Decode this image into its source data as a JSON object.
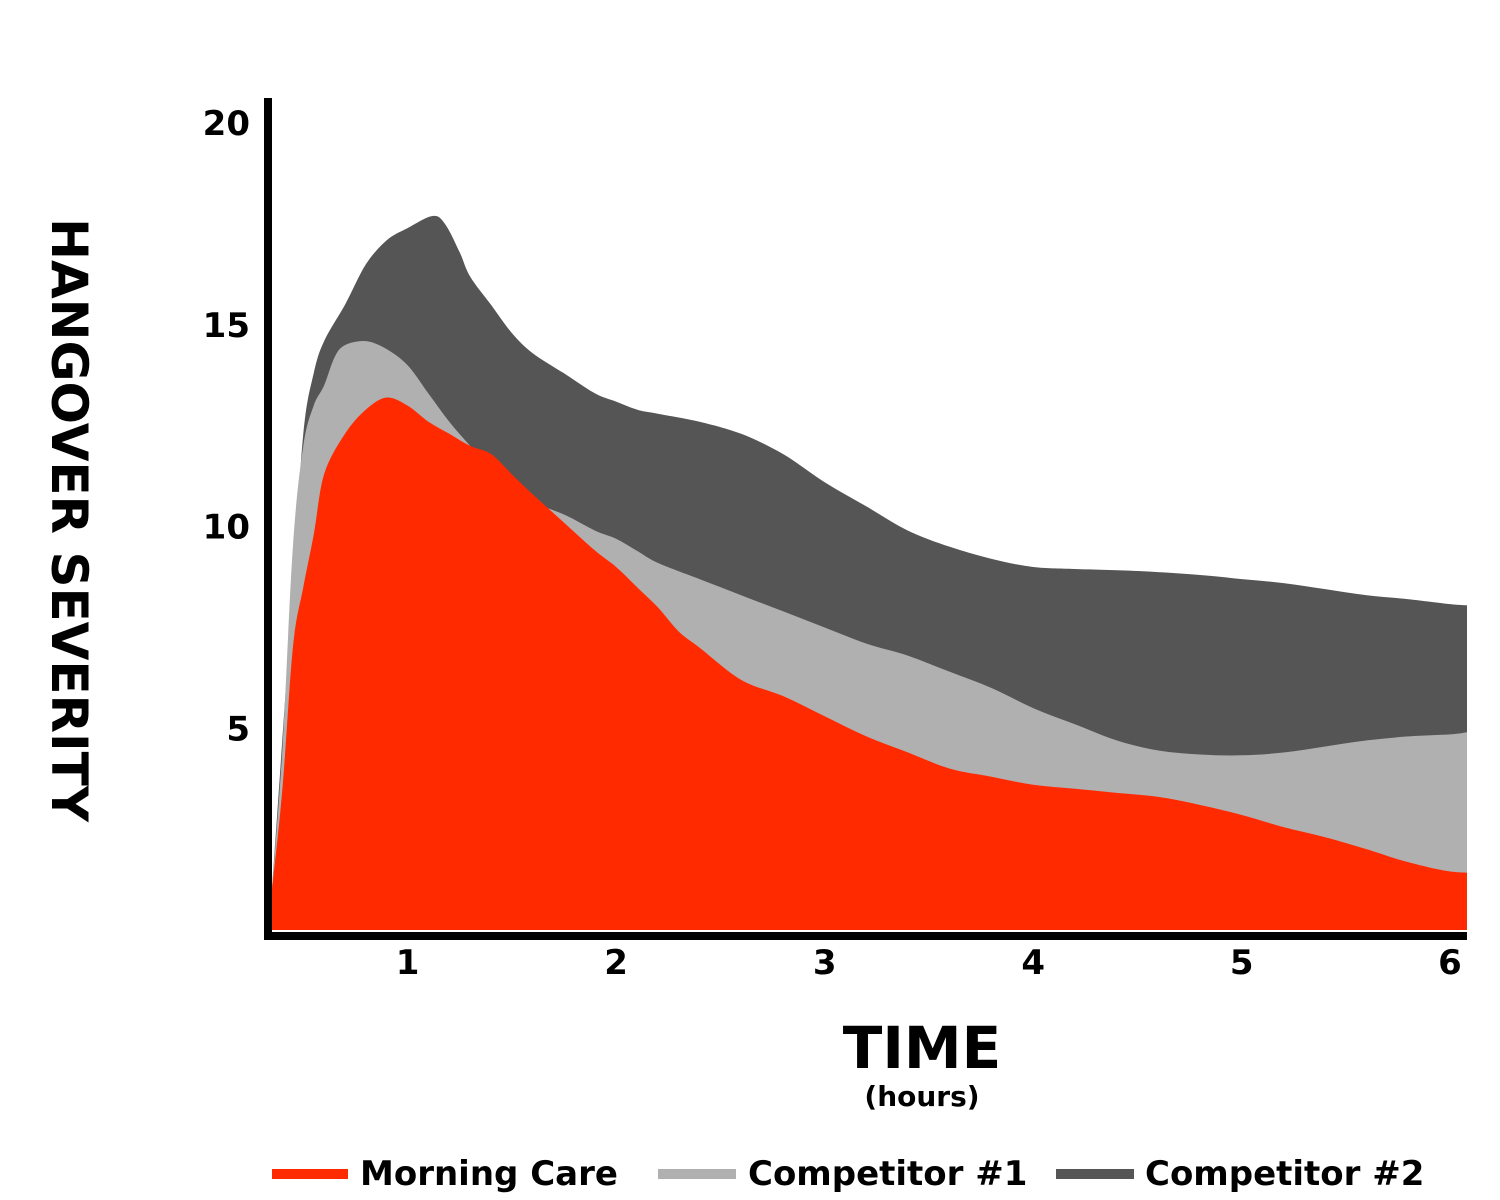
{
  "chart_data": {
    "type": "area",
    "xlabel": "TIME",
    "xlabel_sub": "(hours)",
    "ylabel": "HANGOVER SEVERITY",
    "xlim": [
      0.35,
      6.08
    ],
    "ylim": [
      0,
      20.7
    ],
    "x_ticks": [
      1,
      2,
      3,
      4,
      5,
      6
    ],
    "x_tick_labels": [
      "1",
      "2",
      "3",
      "4",
      "5",
      "6"
    ],
    "y_ticks": [
      5,
      10,
      15,
      20
    ],
    "y_tick_labels": [
      "5",
      "10",
      "15",
      "20"
    ],
    "grid": false,
    "legend_position": "bottom",
    "series": [
      {
        "name": "Competitor #2",
        "color": "#555555",
        "points": [
          [
            0.35,
            1.0
          ],
          [
            0.45,
            8.5
          ],
          [
            0.5,
            12.3
          ],
          [
            0.55,
            13.8
          ],
          [
            0.6,
            14.6
          ],
          [
            0.7,
            15.5
          ],
          [
            0.8,
            16.5
          ],
          [
            0.9,
            17.1
          ],
          [
            1.0,
            17.4
          ],
          [
            1.12,
            17.7
          ],
          [
            1.18,
            17.5
          ],
          [
            1.25,
            16.8
          ],
          [
            1.3,
            16.2
          ],
          [
            1.4,
            15.5
          ],
          [
            1.5,
            14.8
          ],
          [
            1.6,
            14.3
          ],
          [
            1.75,
            13.8
          ],
          [
            1.9,
            13.3
          ],
          [
            2.0,
            13.1
          ],
          [
            2.1,
            12.9
          ],
          [
            2.2,
            12.8
          ],
          [
            2.4,
            12.6
          ],
          [
            2.6,
            12.3
          ],
          [
            2.8,
            11.8
          ],
          [
            3.0,
            11.1
          ],
          [
            3.2,
            10.5
          ],
          [
            3.4,
            9.9
          ],
          [
            3.6,
            9.5
          ],
          [
            3.8,
            9.2
          ],
          [
            4.0,
            9.0
          ],
          [
            4.2,
            8.95
          ],
          [
            4.5,
            8.9
          ],
          [
            4.8,
            8.8
          ],
          [
            5.0,
            8.7
          ],
          [
            5.2,
            8.6
          ],
          [
            5.4,
            8.45
          ],
          [
            5.6,
            8.3
          ],
          [
            5.8,
            8.2
          ],
          [
            6.0,
            8.08
          ],
          [
            6.08,
            8.05
          ]
        ]
      },
      {
        "name": "Competitor #1",
        "color": "#b0b0b0",
        "points": [
          [
            0.35,
            1.0
          ],
          [
            0.4,
            4.5
          ],
          [
            0.45,
            9.5
          ],
          [
            0.5,
            12.0
          ],
          [
            0.55,
            13.0
          ],
          [
            0.6,
            13.5
          ],
          [
            0.65,
            14.2
          ],
          [
            0.7,
            14.5
          ],
          [
            0.8,
            14.6
          ],
          [
            0.9,
            14.4
          ],
          [
            1.0,
            14.0
          ],
          [
            1.1,
            13.3
          ],
          [
            1.2,
            12.6
          ],
          [
            1.3,
            12.0
          ],
          [
            1.4,
            11.4
          ],
          [
            1.5,
            10.9
          ],
          [
            1.6,
            10.6
          ],
          [
            1.75,
            10.3
          ],
          [
            1.9,
            9.9
          ],
          [
            2.0,
            9.7
          ],
          [
            2.1,
            9.4
          ],
          [
            2.2,
            9.1
          ],
          [
            2.4,
            8.7
          ],
          [
            2.6,
            8.3
          ],
          [
            2.8,
            7.9
          ],
          [
            3.0,
            7.5
          ],
          [
            3.2,
            7.1
          ],
          [
            3.4,
            6.8
          ],
          [
            3.6,
            6.4
          ],
          [
            3.8,
            6.0
          ],
          [
            4.0,
            5.5
          ],
          [
            4.2,
            5.1
          ],
          [
            4.4,
            4.7
          ],
          [
            4.6,
            4.45
          ],
          [
            4.8,
            4.35
          ],
          [
            5.0,
            4.33
          ],
          [
            5.2,
            4.4
          ],
          [
            5.4,
            4.55
          ],
          [
            5.6,
            4.7
          ],
          [
            5.8,
            4.8
          ],
          [
            6.0,
            4.85
          ],
          [
            6.08,
            4.9
          ]
        ]
      },
      {
        "name": "Morning Care",
        "color": "#ff2a00",
        "points": [
          [
            0.35,
            1.0
          ],
          [
            0.4,
            3.5
          ],
          [
            0.45,
            7.0
          ],
          [
            0.5,
            8.5
          ],
          [
            0.55,
            9.8
          ],
          [
            0.6,
            11.3
          ],
          [
            0.7,
            12.3
          ],
          [
            0.8,
            12.9
          ],
          [
            0.9,
            13.2
          ],
          [
            1.0,
            13.0
          ],
          [
            1.1,
            12.6
          ],
          [
            1.2,
            12.3
          ],
          [
            1.3,
            12.0
          ],
          [
            1.4,
            11.8
          ],
          [
            1.5,
            11.3
          ],
          [
            1.6,
            10.8
          ],
          [
            1.75,
            10.1
          ],
          [
            1.9,
            9.4
          ],
          [
            2.0,
            9.0
          ],
          [
            2.1,
            8.5
          ],
          [
            2.2,
            8.0
          ],
          [
            2.3,
            7.4
          ],
          [
            2.4,
            7.0
          ],
          [
            2.6,
            6.2
          ],
          [
            2.8,
            5.8
          ],
          [
            3.0,
            5.3
          ],
          [
            3.2,
            4.8
          ],
          [
            3.4,
            4.4
          ],
          [
            3.6,
            4.0
          ],
          [
            3.8,
            3.8
          ],
          [
            4.0,
            3.6
          ],
          [
            4.2,
            3.5
          ],
          [
            4.4,
            3.4
          ],
          [
            4.6,
            3.3
          ],
          [
            4.8,
            3.1
          ],
          [
            5.0,
            2.85
          ],
          [
            5.2,
            2.55
          ],
          [
            5.4,
            2.3
          ],
          [
            5.6,
            2.0
          ],
          [
            5.75,
            1.75
          ],
          [
            5.9,
            1.55
          ],
          [
            6.0,
            1.45
          ],
          [
            6.08,
            1.42
          ]
        ]
      }
    ],
    "legend": [
      {
        "name": "Morning Care",
        "color": "#ff2a00"
      },
      {
        "name": "Competitor #1",
        "color": "#b0b0b0"
      },
      {
        "name": "Competitor #2",
        "color": "#555555"
      }
    ]
  }
}
